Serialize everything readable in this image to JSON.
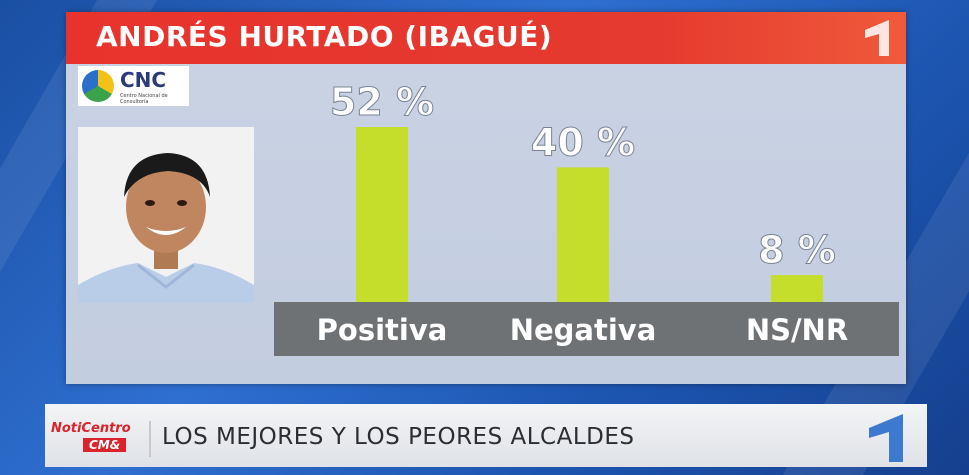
{
  "title": "ANDRÉS HURTADO (IBAGUÉ)",
  "source_logo": {
    "name": "CNC",
    "subtitle": "Centro Nacional de Consultoría"
  },
  "footer": {
    "brand_top": "NotiCentro",
    "brand_bottom": "CM&",
    "headline": "LOS MEJORES Y LOS PEORES ALCALDES"
  },
  "colors": {
    "bar": "#c5dd2b",
    "title_bg": "#e8332c",
    "category_bg": "#6f7275"
  },
  "chart_data": {
    "type": "bar",
    "title": "ANDRÉS HURTADO (IBAGUÉ)",
    "categories": [
      "Positiva",
      "Negativa",
      "NS/NR"
    ],
    "values": [
      52,
      40,
      8
    ],
    "value_labels": [
      "52 %",
      "40 %",
      "8 %"
    ],
    "ylim": [
      0,
      52
    ],
    "grid": false,
    "legend": "none"
  }
}
